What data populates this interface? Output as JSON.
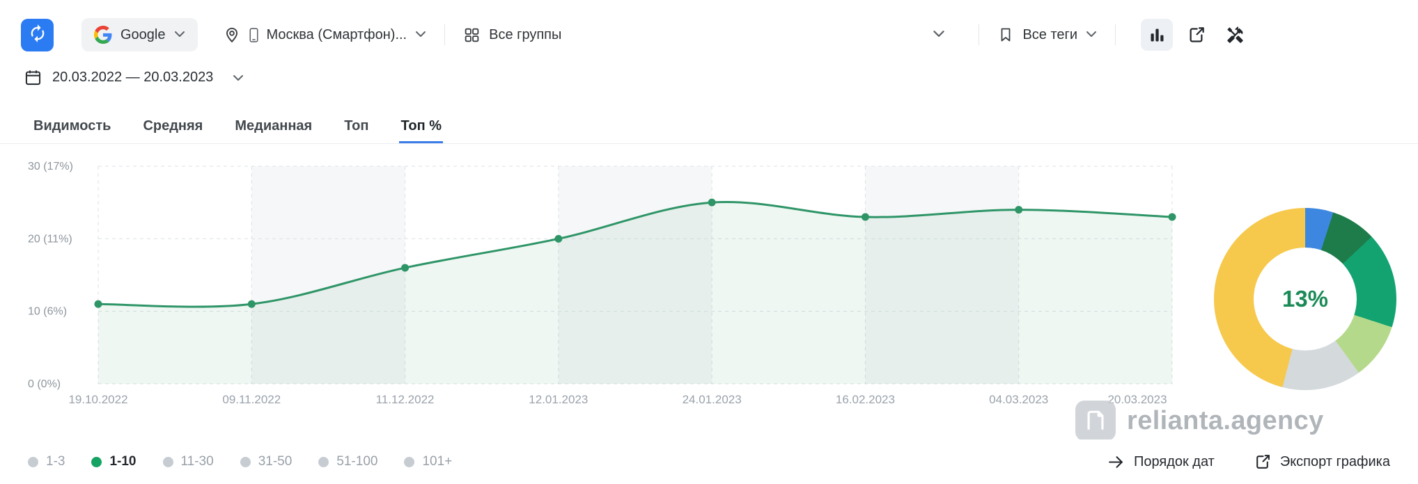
{
  "toolbar": {
    "search_engine_label": "Google",
    "region_label": "Москва (Смартфон)...",
    "groups_label": "Все группы",
    "tags_label": "Все теги"
  },
  "date_range": "20.03.2022 — 20.03.2023",
  "tabs": [
    {
      "label": "Видимость",
      "active": false
    },
    {
      "label": "Средняя",
      "active": false
    },
    {
      "label": "Медианная",
      "active": false
    },
    {
      "label": "Топ",
      "active": false
    },
    {
      "label": "Топ %",
      "active": true
    }
  ],
  "chart_data": [
    {
      "type": "line",
      "title": "Топ % по датам",
      "x": [
        "19.10.2022",
        "09.11.2022",
        "11.12.2022",
        "12.01.2023",
        "24.01.2023",
        "16.02.2023",
        "04.03.2023",
        "20.03.2023"
      ],
      "series": [
        {
          "name": "1-10",
          "values": [
            11,
            11,
            16,
            20,
            25,
            23,
            24,
            23
          ]
        }
      ],
      "ylim": [
        0,
        30
      ],
      "yticks": [
        {
          "value": 0,
          "label": "0 (0%)"
        },
        {
          "value": 10,
          "label": "10 (6%)"
        },
        {
          "value": 20,
          "label": "20 (11%)"
        },
        {
          "value": 30,
          "label": "30 (17%)"
        }
      ],
      "line_color": "#2e9567",
      "area_fill": "rgba(46,150,104,0.08)",
      "grid": true,
      "legend_position": "bottom"
    },
    {
      "type": "pie",
      "center_label": "13%",
      "segments": [
        {
          "name": "segment-blue",
          "value": 5,
          "color": "#3d87e0"
        },
        {
          "name": "segment-dark-green",
          "value": 8,
          "color": "#1d7c49"
        },
        {
          "name": "segment-teal-green",
          "value": 17,
          "color": "#12a371"
        },
        {
          "name": "segment-light-green",
          "value": 10,
          "color": "#b5d98b"
        },
        {
          "name": "segment-light-gray",
          "value": 14,
          "color": "#d4d9dc"
        },
        {
          "name": "segment-yellow",
          "value": 46,
          "color": "#f6c84c"
        }
      ]
    }
  ],
  "legend": [
    {
      "label": "1-3",
      "active": false
    },
    {
      "label": "1-10",
      "active": true
    },
    {
      "label": "11-30",
      "active": false
    },
    {
      "label": "31-50",
      "active": false
    },
    {
      "label": "51-100",
      "active": false
    },
    {
      "label": "101+",
      "active": false
    }
  ],
  "actions": {
    "date_order_label": "Порядок дат",
    "export_chart_label": "Экспорт графика"
  },
  "watermark_text": "relianta.agency",
  "colors": {
    "accent_blue": "#2b7bf3",
    "line_green": "#2e9567",
    "tab_underline": "#3c7ce8",
    "donut_center_green": "#1a8a56"
  }
}
